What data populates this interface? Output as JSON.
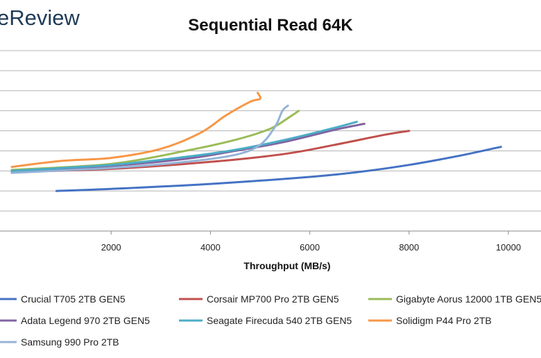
{
  "watermark": "eReview",
  "chart_data": {
    "type": "line",
    "title": "Sequential Read 64K",
    "xlabel": "Throughput  (MB/s)",
    "ylabel": "",
    "xlim": [
      0,
      10500
    ],
    "x_ticks": [
      2000,
      4000,
      6000,
      8000,
      10000
    ],
    "x_tick_labels": [
      "2000",
      "4000",
      "6000",
      "8000",
      "10000"
    ],
    "y_ticks": [
      0,
      1,
      2,
      3,
      4,
      5,
      6,
      7,
      8,
      9
    ],
    "ylim": [
      0,
      9
    ],
    "y_tick_labels_visible": false,
    "grid": "horizontal",
    "legend_position": "bottom",
    "series": [
      {
        "name": "Crucial T705 2TB GEN5",
        "color": "#4472C4",
        "points": [
          [
            900,
            2.0
          ],
          [
            2000,
            2.1
          ],
          [
            4000,
            2.35
          ],
          [
            6000,
            2.7
          ],
          [
            7000,
            2.95
          ],
          [
            8000,
            3.3
          ],
          [
            9000,
            3.75
          ],
          [
            9850,
            4.2
          ]
        ]
      },
      {
        "name": "Corsair MP700 Pro 2TB GEN5",
        "color": "#C0504D",
        "points": [
          [
            0,
            2.95
          ],
          [
            2000,
            3.1
          ],
          [
            4000,
            3.45
          ],
          [
            5500,
            3.85
          ],
          [
            6500,
            4.3
          ],
          [
            7500,
            4.8
          ],
          [
            8000,
            5.0
          ]
        ]
      },
      {
        "name": "Gigabyte Aorus 12000 1TB GEN5",
        "color": "#9BBB59",
        "points": [
          [
            0,
            3.05
          ],
          [
            2000,
            3.35
          ],
          [
            3500,
            4.0
          ],
          [
            4500,
            4.55
          ],
          [
            5200,
            5.1
          ],
          [
            5600,
            5.7
          ],
          [
            5780,
            6.0
          ]
        ]
      },
      {
        "name": "Adata Legend 970 2TB GEN5",
        "color": "#8064A2",
        "points": [
          [
            0,
            2.95
          ],
          [
            2000,
            3.25
          ],
          [
            3500,
            3.6
          ],
          [
            4500,
            4.0
          ],
          [
            5500,
            4.45
          ],
          [
            6500,
            5.05
          ],
          [
            7100,
            5.35
          ]
        ]
      },
      {
        "name": "Seagate Firecuda 540 2TB GEN5",
        "color": "#4BACC6",
        "points": [
          [
            0,
            3.0
          ],
          [
            2000,
            3.3
          ],
          [
            3500,
            3.7
          ],
          [
            4500,
            4.05
          ],
          [
            5500,
            4.55
          ],
          [
            6500,
            5.15
          ],
          [
            6950,
            5.45
          ]
        ]
      },
      {
        "name": "Solidigm P44 Pro 2TB",
        "color": "#F79646",
        "points": [
          [
            0,
            3.2
          ],
          [
            1000,
            3.5
          ],
          [
            2000,
            3.65
          ],
          [
            3000,
            4.1
          ],
          [
            3800,
            4.9
          ],
          [
            4300,
            5.75
          ],
          [
            4800,
            6.45
          ],
          [
            5000,
            6.6
          ],
          [
            4950,
            6.9
          ]
        ]
      },
      {
        "name": "Samsung 990 Pro 2TB",
        "color": "#95B3D7",
        "points": [
          [
            0,
            2.9
          ],
          [
            2000,
            3.15
          ],
          [
            3500,
            3.45
          ],
          [
            4500,
            3.8
          ],
          [
            5000,
            4.3
          ],
          [
            5300,
            5.2
          ],
          [
            5450,
            6.0
          ],
          [
            5560,
            6.25
          ]
        ]
      }
    ]
  }
}
